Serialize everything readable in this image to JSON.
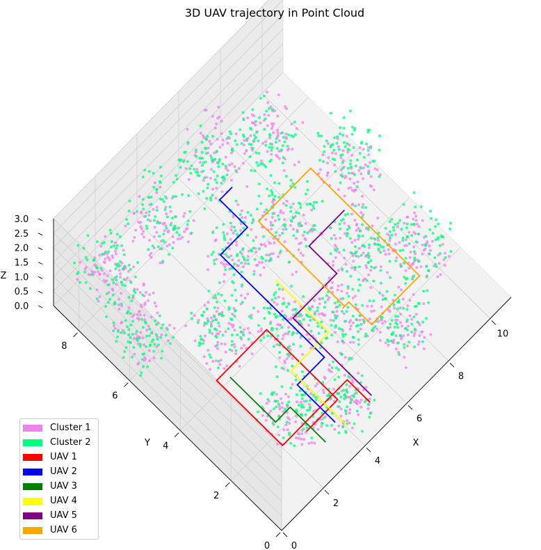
{
  "chart_data": {
    "type": "scatter3d",
    "title": "3D UAV trajectory in Point Cloud",
    "xlabel": "X",
    "ylabel": "Y",
    "zlabel": "Z",
    "xlim": [
      0,
      11
    ],
    "ylim": [
      0,
      9
    ],
    "zlim": [
      0,
      3
    ],
    "x_ticks": [
      "0",
      "2",
      "4",
      "6",
      "8",
      "10"
    ],
    "y_ticks": [
      "0",
      "2",
      "4",
      "6",
      "8"
    ],
    "z_ticks": [
      "0.0",
      "0.5",
      "1.0",
      "1.5",
      "2.0",
      "2.5",
      "3.0"
    ],
    "grid": true,
    "legend_position": "bottom-left",
    "legend": [
      {
        "label": "Cluster 1",
        "color": "#ee82ee"
      },
      {
        "label": "Cluster 2",
        "color": "#00ff7f"
      },
      {
        "label": "UAV 1",
        "color": "#ff0000"
      },
      {
        "label": "UAV 2",
        "color": "#0000ff"
      },
      {
        "label": "UAV 3",
        "color": "#008000"
      },
      {
        "label": "UAV 4",
        "color": "#ffff00"
      },
      {
        "label": "UAV 5",
        "color": "#800080"
      },
      {
        "label": "UAV 6",
        "color": "#ffa500"
      }
    ],
    "point_clusters": [
      {
        "name": "Cluster 1",
        "color": "#ee82ee",
        "blobs": [
          [
            1.8,
            8.4,
            0.8
          ],
          [
            1.2,
            6.6,
            1.2
          ],
          [
            4.0,
            8.1,
            1.0
          ],
          [
            5.2,
            6.0,
            1.5
          ],
          [
            6.8,
            8.2,
            1.8
          ],
          [
            7.0,
            5.5,
            1.0
          ],
          [
            8.8,
            7.6,
            1.2
          ],
          [
            9.9,
            5.5,
            1.0
          ],
          [
            2.9,
            4.8,
            0.9
          ],
          [
            4.6,
            3.6,
            1.1
          ],
          [
            6.2,
            2.8,
            1.0
          ],
          [
            8.1,
            3.5,
            1.3
          ],
          [
            9.6,
            2.5,
            0.8
          ],
          [
            2.6,
            1.8,
            0.7
          ],
          [
            4.3,
            1.2,
            0.8
          ],
          [
            7.4,
            1.4,
            1.0
          ]
        ]
      },
      {
        "name": "Cluster 2",
        "color": "#00ff7f",
        "blobs": [
          [
            1.6,
            8.2,
            1.4
          ],
          [
            1.0,
            6.4,
            0.9
          ],
          [
            4.2,
            8.3,
            1.6
          ],
          [
            5.4,
            6.2,
            1.1
          ],
          [
            6.6,
            8.4,
            1.2
          ],
          [
            7.2,
            5.7,
            1.6
          ],
          [
            8.6,
            7.8,
            1.0
          ],
          [
            10.1,
            5.7,
            1.5
          ],
          [
            3.1,
            5.0,
            1.2
          ],
          [
            4.8,
            3.8,
            0.8
          ],
          [
            6.0,
            2.6,
            1.4
          ],
          [
            8.3,
            3.7,
            1.0
          ],
          [
            9.8,
            2.7,
            1.3
          ],
          [
            2.8,
            2.0,
            1.1
          ],
          [
            4.1,
            1.0,
            1.2
          ],
          [
            7.6,
            1.6,
            1.4
          ]
        ]
      }
    ],
    "series": [
      {
        "name": "UAV 1",
        "color": "#ff0000",
        "x": [
          4.6,
          4.6,
          1.5,
          1.5,
          3.9,
          3.9,
          2.4
        ],
        "y": [
          0.3,
          1.2,
          1.2,
          3.8,
          3.8,
          1.0,
          1.0
        ],
        "z": [
          0.8,
          0.8,
          0.8,
          0.8,
          0.8,
          0.8,
          0.8
        ]
      },
      {
        "name": "UAV 2",
        "color": "#0000ff",
        "x": [
          3.3,
          3.3,
          4.6,
          4.6,
          5.9,
          5.9,
          6.5
        ],
        "y": [
          0.6,
          2.1,
          2.1,
          6.2,
          6.2,
          7.3,
          7.3
        ],
        "z": [
          0.8,
          0.8,
          0.8,
          0.8,
          0.8,
          0.8,
          0.8
        ]
      },
      {
        "name": "UAV 3",
        "color": "#008000",
        "x": [
          2.6,
          2.6,
          1.9,
          1.9
        ],
        "y": [
          0.4,
          1.8,
          1.8,
          3.6
        ],
        "z": [
          0.8,
          0.8,
          0.8,
          0.8
        ]
      },
      {
        "name": "UAV 4",
        "color": "#ffff00",
        "x": [
          3.5,
          3.5,
          5.3,
          5.3
        ],
        "y": [
          0.3,
          2.5,
          2.5,
          4.6
        ],
        "z": [
          0.8,
          0.8,
          0.8,
          0.8
        ]
      },
      {
        "name": "UAV 5",
        "color": "#800080",
        "x": [
          4.8,
          4.8,
          6.9,
          6.9,
          7.4,
          8.6
        ],
        "y": [
          0.4,
          3.5,
          3.5,
          4.6,
          4.6,
          4.6
        ],
        "z": [
          0.8,
          0.8,
          0.8,
          0.8,
          0.8,
          0.8
        ]
      },
      {
        "name": "UAV 6",
        "color": "#ffa500",
        "x": [
          6.3,
          6.3,
          8.8,
          8.8,
          6.5,
          6.5,
          6.2
        ],
        "y": [
          2.7,
          6.1,
          6.1,
          1.8,
          1.8,
          2.7,
          2.7
        ],
        "z": [
          0.8,
          0.8,
          0.8,
          0.8,
          0.8,
          0.8,
          0.8
        ]
      }
    ]
  }
}
